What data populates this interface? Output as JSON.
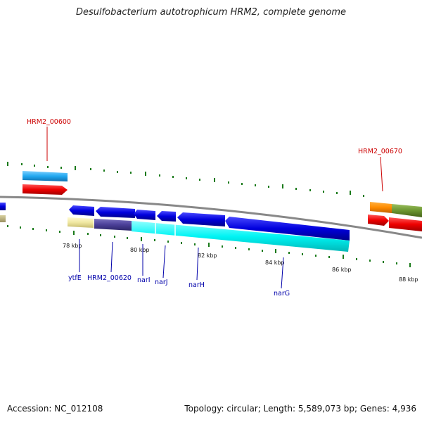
{
  "title": "Desulfobacterium autotrophicum HRM2, complete genome",
  "footer": {
    "accession": "Accession: NC_012108",
    "summary": "Topology: circular; Length: 5,589,073 bp; Genes: 4,936"
  },
  "ticks": [
    "78 kbp",
    "80 kbp",
    "82 kbp",
    "84 kbp",
    "86 kbp",
    "88 kbp"
  ],
  "gene_labels": {
    "hrm2_00600": "HRM2_00600",
    "hrm2_00670": "HRM2_00670",
    "ytfE": "ytfE",
    "hrm2_00620": "HRM2_00620",
    "narI": "narI",
    "narJ": "narJ",
    "narH": "narH",
    "narG": "narG"
  },
  "colors": {
    "label_red": "#cc0000",
    "label_blue": "#0000aa",
    "forward_gene": "#ff0000",
    "reverse_gene": "#0000ee",
    "cyan": "#00ffff",
    "backbone": "#888888",
    "tick_green": "#1a7a1a"
  }
}
